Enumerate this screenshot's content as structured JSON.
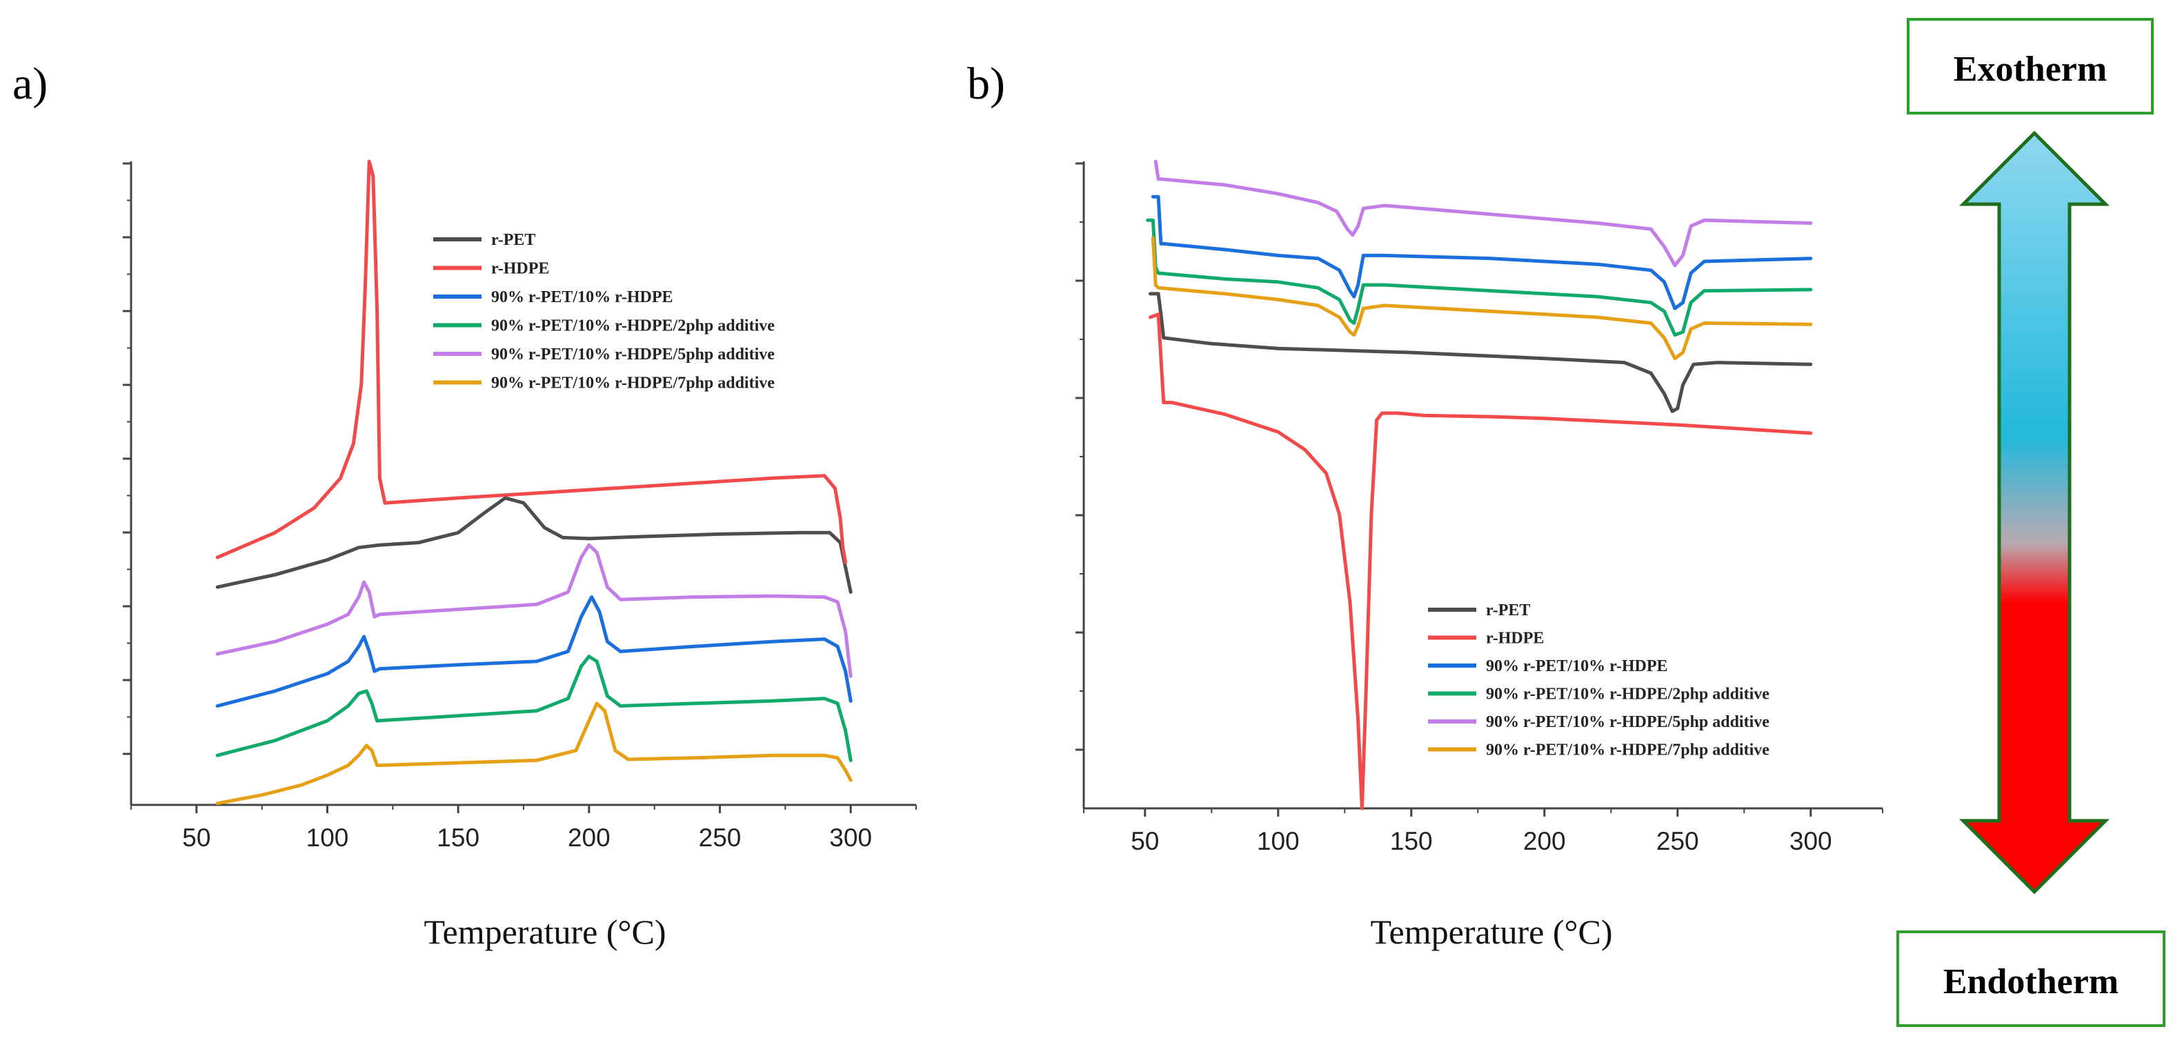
{
  "panels": {
    "a": {
      "label": "a)"
    },
    "b": {
      "label": "b)"
    }
  },
  "indicator": {
    "top_label": "Exotherm",
    "bottom_label": "Endotherm",
    "box_border_color": "#2aa02a",
    "arrow_top_color": "#8fd8f0",
    "arrow_mid_color": "#22b8dc",
    "arrow_bottom_color": "#ff0000"
  },
  "chart_data": [
    {
      "type": "line",
      "panel": "a",
      "title": "",
      "xlabel": "Temperature (°C)",
      "ylabel": "",
      "xlim": [
        25,
        325
      ],
      "ylim": [
        0,
        130
      ],
      "xticks": [
        50,
        100,
        150,
        200,
        250,
        300
      ],
      "ytick_count": 9,
      "legend_position": "top-center",
      "series": [
        {
          "name": "r-PET",
          "color": "#4d4d4d",
          "points": [
            [
              58,
              44
            ],
            [
              80,
              46.5
            ],
            [
              100,
              49.5
            ],
            [
              112,
              52
            ],
            [
              120,
              52.5
            ],
            [
              135,
              53
            ],
            [
              150,
              55
            ],
            [
              160,
              59
            ],
            [
              168,
              62
            ],
            [
              175,
              61
            ],
            [
              183,
              56
            ],
            [
              190,
              54
            ],
            [
              200,
              53.8
            ],
            [
              220,
              54.2
            ],
            [
              250,
              54.7
            ],
            [
              280,
              55
            ],
            [
              292,
              55
            ],
            [
              296,
              53
            ],
            [
              298,
              48
            ],
            [
              300,
              43
            ]
          ]
        },
        {
          "name": "r-HDPE",
          "color": "#f24a4a",
          "points": [
            [
              58,
              50
            ],
            [
              80,
              55
            ],
            [
              95,
              60
            ],
            [
              105,
              66
            ],
            [
              110,
              73
            ],
            [
              113,
              85
            ],
            [
              114.5,
              105
            ],
            [
              116,
              130
            ],
            [
              117.5,
              127
            ],
            [
              119,
              100
            ],
            [
              120,
              66
            ],
            [
              122,
              61
            ],
            [
              150,
              62
            ],
            [
              180,
              63
            ],
            [
              210,
              64
            ],
            [
              240,
              65
            ],
            [
              270,
              66
            ],
            [
              290,
              66.5
            ],
            [
              294,
              64
            ],
            [
              296,
              58
            ],
            [
              297,
              52
            ],
            [
              298,
              49
            ]
          ]
        },
        {
          "name": "90% r-PET/10% r-HDPE",
          "color": "#1a6fdc",
          "points": [
            [
              58,
              20
            ],
            [
              80,
              23
            ],
            [
              100,
              26.5
            ],
            [
              108,
              29
            ],
            [
              112,
              32
            ],
            [
              114,
              34
            ],
            [
              116,
              31
            ],
            [
              118,
              27
            ],
            [
              120,
              27.5
            ],
            [
              150,
              28.3
            ],
            [
              180,
              29
            ],
            [
              192,
              31
            ],
            [
              197,
              38
            ],
            [
              201,
              42
            ],
            [
              204,
              39
            ],
            [
              207,
              33
            ],
            [
              212,
              31
            ],
            [
              240,
              32
            ],
            [
              270,
              33
            ],
            [
              290,
              33.5
            ],
            [
              295,
              32
            ],
            [
              298,
              27
            ],
            [
              300,
              21
            ]
          ]
        },
        {
          "name": "90% r-PET/10% r-HDPE/2php additive",
          "color": "#12aa6a",
          "points": [
            [
              58,
              10
            ],
            [
              80,
              13
            ],
            [
              100,
              17
            ],
            [
              108,
              20
            ],
            [
              112,
              22.5
            ],
            [
              115,
              23
            ],
            [
              117,
              20.5
            ],
            [
              119,
              17
            ],
            [
              125,
              17.2
            ],
            [
              150,
              18
            ],
            [
              180,
              19
            ],
            [
              192,
              21.5
            ],
            [
              197,
              28
            ],
            [
              200,
              30
            ],
            [
              203,
              29
            ],
            [
              207,
              22
            ],
            [
              212,
              20
            ],
            [
              240,
              20.5
            ],
            [
              270,
              21
            ],
            [
              290,
              21.5
            ],
            [
              295,
              20.5
            ],
            [
              298,
              15
            ],
            [
              300,
              9
            ]
          ]
        },
        {
          "name": "90% r-PET/10% r-HDPE/5php additive",
          "color": "#c27ee6",
          "points": [
            [
              58,
              30.5
            ],
            [
              80,
              33
            ],
            [
              100,
              36.5
            ],
            [
              108,
              38.5
            ],
            [
              112,
              42
            ],
            [
              114,
              45
            ],
            [
              116,
              43
            ],
            [
              118,
              38
            ],
            [
              120,
              38.5
            ],
            [
              150,
              39.5
            ],
            [
              180,
              40.5
            ],
            [
              192,
              43
            ],
            [
              197,
              50
            ],
            [
              200,
              52.5
            ],
            [
              203,
              51
            ],
            [
              207,
              44
            ],
            [
              212,
              41.5
            ],
            [
              240,
              42
            ],
            [
              270,
              42.2
            ],
            [
              290,
              42
            ],
            [
              295,
              41
            ],
            [
              298,
              35
            ],
            [
              300,
              26
            ]
          ]
        },
        {
          "name": "90% r-PET/10% r-HDPE/7php additive",
          "color": "#e6a015",
          "points": [
            [
              58,
              0.3
            ],
            [
              75,
              2
            ],
            [
              90,
              4
            ],
            [
              100,
              6
            ],
            [
              108,
              8
            ],
            [
              112,
              10
            ],
            [
              115,
              12
            ],
            [
              117,
              11
            ],
            [
              119,
              8
            ],
            [
              120,
              8
            ],
            [
              150,
              8.5
            ],
            [
              180,
              9
            ],
            [
              195,
              11
            ],
            [
              200,
              17
            ],
            [
              203,
              20.5
            ],
            [
              206,
              19
            ],
            [
              210,
              11
            ],
            [
              215,
              9.2
            ],
            [
              240,
              9.5
            ],
            [
              270,
              10
            ],
            [
              290,
              10
            ],
            [
              295,
              9.5
            ],
            [
              298,
              7
            ],
            [
              300,
              5
            ]
          ]
        }
      ]
    },
    {
      "type": "line",
      "panel": "b",
      "title": "",
      "xlabel": "Temperature (°C)",
      "ylabel": "",
      "xlim": [
        27,
        327
      ],
      "ylim": [
        0,
        110
      ],
      "xticks": [
        50,
        100,
        150,
        200,
        250,
        300
      ],
      "ytick_count": 6,
      "legend_position": "bottom-center",
      "series": [
        {
          "name": "r-PET",
          "color": "#4d4d4d",
          "points": [
            [
              52,
              87.5
            ],
            [
              55,
              87.5
            ],
            [
              56,
              84
            ],
            [
              57,
              80
            ],
            [
              75,
              79
            ],
            [
              100,
              78.2
            ],
            [
              150,
              77.5
            ],
            [
              200,
              76.5
            ],
            [
              230,
              75.8
            ],
            [
              240,
              74
            ],
            [
              245,
              70.5
            ],
            [
              248,
              67.5
            ],
            [
              250,
              68
            ],
            [
              252,
              72
            ],
            [
              256,
              75.5
            ],
            [
              265,
              75.8
            ],
            [
              300,
              75.5
            ]
          ]
        },
        {
          "name": "r-HDPE",
          "color": "#f24a4a",
          "points": [
            [
              52,
              83.5
            ],
            [
              55,
              84
            ],
            [
              57,
              69
            ],
            [
              60,
              69
            ],
            [
              80,
              67
            ],
            [
              100,
              64
            ],
            [
              110,
              61
            ],
            [
              118,
              57
            ],
            [
              123,
              50
            ],
            [
              127,
              35
            ],
            [
              130,
              15
            ],
            [
              131.5,
              0
            ],
            [
              133,
              20
            ],
            [
              135,
              50
            ],
            [
              137,
              66
            ],
            [
              139,
              67.2
            ],
            [
              145,
              67.2
            ],
            [
              155,
              66.8
            ],
            [
              180,
              66.6
            ],
            [
              200,
              66.3
            ],
            [
              250,
              65.2
            ],
            [
              300,
              63.8
            ]
          ]
        },
        {
          "name": "90% r-PET/10% r-HDPE",
          "color": "#1a6fdc",
          "points": [
            [
              53,
              104
            ],
            [
              55,
              104
            ],
            [
              56,
              96
            ],
            [
              57,
              96
            ],
            [
              80,
              95
            ],
            [
              100,
              94
            ],
            [
              115,
              93.5
            ],
            [
              123,
              91.5
            ],
            [
              127,
              88
            ],
            [
              128.5,
              87
            ],
            [
              130,
              89
            ],
            [
              132,
              94
            ],
            [
              140,
              94
            ],
            [
              180,
              93.5
            ],
            [
              220,
              92.5
            ],
            [
              240,
              91.5
            ],
            [
              245,
              89.5
            ],
            [
              249,
              85
            ],
            [
              252,
              86
            ],
            [
              255,
              91
            ],
            [
              260,
              93
            ],
            [
              300,
              93.5
            ]
          ]
        },
        {
          "name": "90% r-PET/10% r-HDPE/2php additive",
          "color": "#12aa6a",
          "points": [
            [
              51,
              100
            ],
            [
              53,
              100
            ],
            [
              54,
              92
            ],
            [
              55,
              91
            ],
            [
              80,
              90
            ],
            [
              100,
              89.5
            ],
            [
              115,
              88.5
            ],
            [
              123,
              86.5
            ],
            [
              127,
              83
            ],
            [
              128.5,
              82.5
            ],
            [
              130,
              85
            ],
            [
              132,
              89
            ],
            [
              140,
              89
            ],
            [
              180,
              88
            ],
            [
              220,
              87
            ],
            [
              240,
              86
            ],
            [
              245,
              84.5
            ],
            [
              249,
              80.5
            ],
            [
              252,
              81
            ],
            [
              255,
              86
            ],
            [
              260,
              88
            ],
            [
              300,
              88.2
            ]
          ]
        },
        {
          "name": "90% r-PET/10% r-HDPE/5php additive",
          "color": "#c27ee6",
          "points": [
            [
              54,
              110
            ],
            [
              55,
              107
            ],
            [
              56,
              107
            ],
            [
              80,
              106
            ],
            [
              100,
              104.5
            ],
            [
              115,
              103
            ],
            [
              122,
              101.5
            ],
            [
              126,
              98.5
            ],
            [
              128,
              97.5
            ],
            [
              130,
              99
            ],
            [
              132,
              102
            ],
            [
              140,
              102.5
            ],
            [
              180,
              101
            ],
            [
              220,
              99.5
            ],
            [
              240,
              98.5
            ],
            [
              245,
              95.5
            ],
            [
              249,
              92.3
            ],
            [
              252,
              94
            ],
            [
              255,
              99
            ],
            [
              260,
              100
            ],
            [
              300,
              99.5
            ]
          ]
        },
        {
          "name": "90% r-PET/10% r-HDPE/7php additive",
          "color": "#e6a015",
          "points": [
            [
              53,
              97
            ],
            [
              54,
              89
            ],
            [
              55,
              88.5
            ],
            [
              80,
              87.5
            ],
            [
              100,
              86.5
            ],
            [
              115,
              85.5
            ],
            [
              123,
              83.5
            ],
            [
              127,
              81
            ],
            [
              128.5,
              80.5
            ],
            [
              130,
              82
            ],
            [
              132,
              85
            ],
            [
              140,
              85.5
            ],
            [
              180,
              84.5
            ],
            [
              220,
              83.5
            ],
            [
              240,
              82.5
            ],
            [
              245,
              80
            ],
            [
              249,
              76.5
            ],
            [
              252,
              77.5
            ],
            [
              255,
              81.5
            ],
            [
              260,
              82.5
            ],
            [
              300,
              82.3
            ]
          ]
        }
      ]
    }
  ]
}
